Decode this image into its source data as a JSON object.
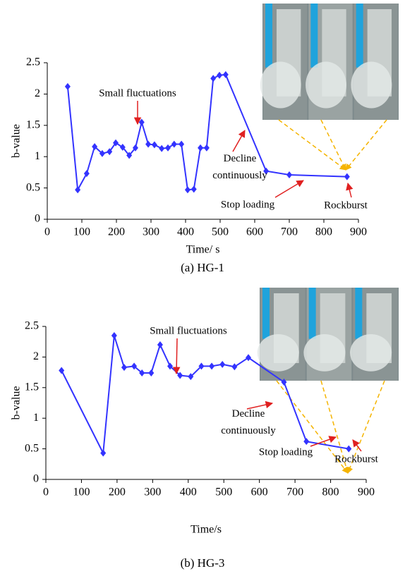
{
  "chart_data": [
    {
      "type": "line",
      "title": "(a)  HG-1",
      "xlabel": "Time/ s",
      "ylabel": "b-value",
      "x": [
        59,
        88,
        114,
        137,
        159,
        180,
        198,
        218,
        237,
        255,
        273,
        292,
        310,
        331,
        349,
        367,
        388,
        406,
        424,
        443,
        461,
        480,
        498,
        516,
        633,
        700,
        867
      ],
      "series": [
        {
          "color": "#3333ff",
          "values": [
            2.12,
            0.47,
            0.73,
            1.16,
            1.05,
            1.08,
            1.22,
            1.15,
            1.02,
            1.14,
            1.55,
            1.2,
            1.19,
            1.13,
            1.14,
            1.2,
            1.2,
            0.47,
            0.48,
            1.14,
            1.14,
            2.25,
            2.3,
            2.31,
            0.77,
            0.71,
            0.68
          ]
        }
      ],
      "xlim": [
        0,
        900
      ],
      "xticks": [
        0,
        100,
        200,
        300,
        400,
        500,
        600,
        700,
        800,
        900
      ],
      "ylim": [
        0,
        2.5
      ],
      "yticks": [
        0,
        0.5,
        1,
        1.5,
        2,
        2.5
      ],
      "annotations": [
        "Small fluctuations",
        "Decline continuously",
        "Stop loading",
        "Rockburst"
      ]
    },
    {
      "type": "line",
      "title": "(b) HG-3",
      "xlabel": "Time/s",
      "ylabel": "b-value",
      "x": [
        44,
        161,
        192,
        220,
        248,
        270,
        296,
        321,
        349,
        377,
        407,
        437,
        466,
        496,
        530,
        569,
        669,
        732,
        851
      ],
      "series": [
        {
          "color": "#3333ff",
          "values": [
            1.78,
            0.43,
            2.35,
            1.83,
            1.85,
            1.74,
            1.74,
            2.2,
            1.85,
            1.7,
            1.68,
            1.85,
            1.85,
            1.88,
            1.84,
            1.99,
            1.59,
            0.62,
            0.5
          ]
        }
      ],
      "xlim": [
        0,
        900
      ],
      "xticks": [
        0,
        100,
        200,
        300,
        400,
        500,
        600,
        700,
        800,
        900
      ],
      "ylim": [
        0,
        2.5
      ],
      "yticks": [
        0,
        0.5,
        1,
        1.5,
        2,
        2.5
      ],
      "annotations": [
        "Small fluctuations",
        "Decline continuously",
        "Stop loading",
        "Rockburst"
      ]
    }
  ]
}
